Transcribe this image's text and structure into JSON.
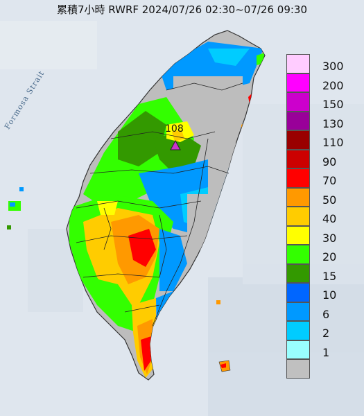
{
  "title": "累積7小時 RWRF 2024/07/26 02:30~07/26 09:30",
  "map": {
    "strait_label": "Formosa Strait",
    "station_max_value": "108",
    "station_marker_color": "#cc33cc"
  },
  "legend": {
    "unit_hint": "",
    "items": [
      {
        "label": "300",
        "color": "#ffccff"
      },
      {
        "label": "200",
        "color": "#ff00ff"
      },
      {
        "label": "150",
        "color": "#cc00cc"
      },
      {
        "label": "130",
        "color": "#990099"
      },
      {
        "label": "110",
        "color": "#990000"
      },
      {
        "label": "90",
        "color": "#cc0000"
      },
      {
        "label": "70",
        "color": "#ff0000"
      },
      {
        "label": "50",
        "color": "#ff9900"
      },
      {
        "label": "40",
        "color": "#ffcc00"
      },
      {
        "label": "30",
        "color": "#ffff00"
      },
      {
        "label": "20",
        "color": "#33ff00"
      },
      {
        "label": "15",
        "color": "#339900"
      },
      {
        "label": "10",
        "color": "#0066ff"
      },
      {
        "label": "6",
        "color": "#0099ff"
      },
      {
        "label": "2",
        "color": "#00ccff"
      },
      {
        "label": "1",
        "color": "#99ffff"
      },
      {
        "label": "",
        "color": "#c0c0c0"
      }
    ]
  },
  "colors": {
    "sea": "#dfe6ee",
    "sea_deep": "#cfd9e4",
    "land_dry": "#bdbdbd",
    "boundary": "#222222"
  }
}
